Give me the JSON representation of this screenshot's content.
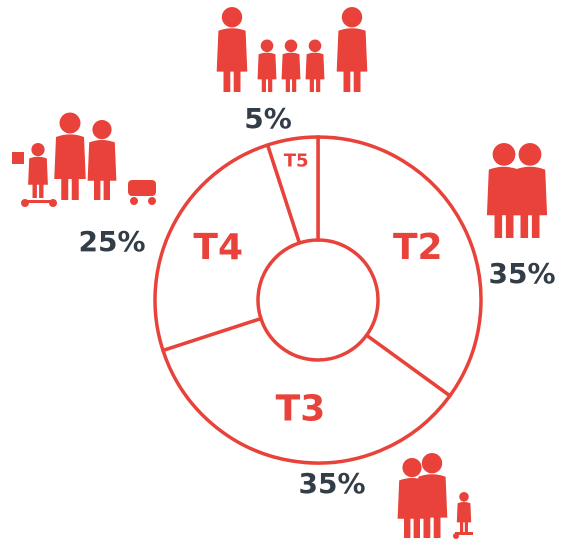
{
  "chart_data": {
    "type": "donut",
    "categories": [
      "T2",
      "T3",
      "T4",
      "T5"
    ],
    "values": [
      35,
      35,
      25,
      5
    ],
    "value_labels": [
      "35%",
      "35%",
      "25%",
      "5%"
    ],
    "color": "#e8423a",
    "label_color": "#333d47"
  }
}
